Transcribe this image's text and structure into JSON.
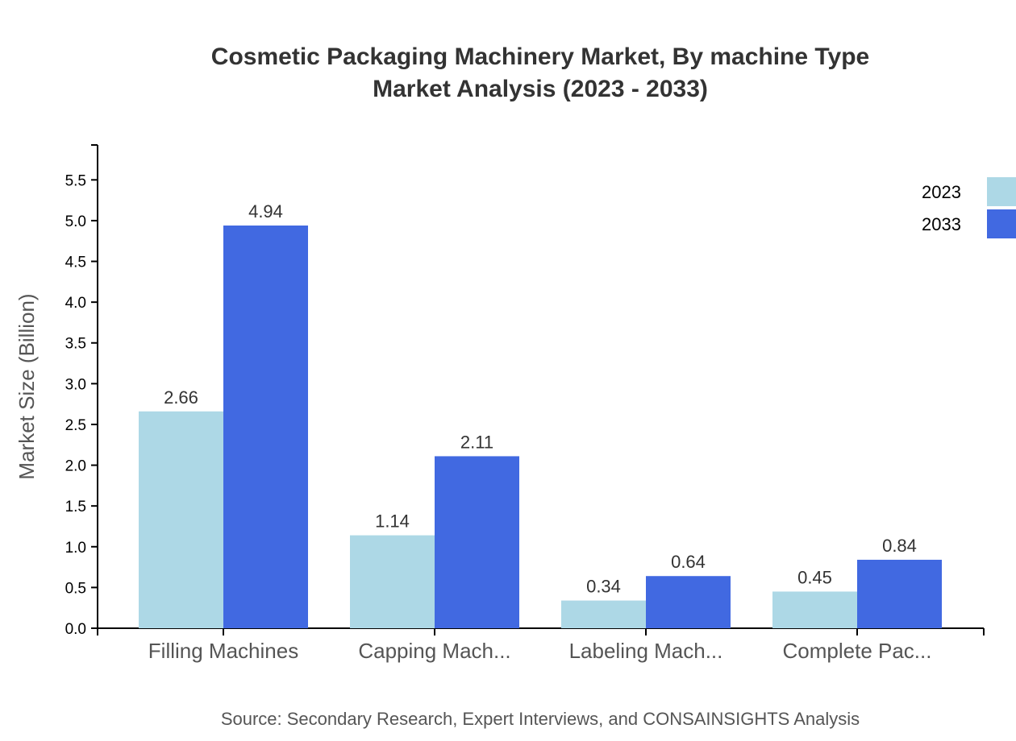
{
  "chart_data": {
    "type": "bar",
    "title": "Cosmetic Packaging Machinery Market, By machine Type",
    "subtitle": "Market Analysis (2023 - 2033)",
    "xlabel": "",
    "ylabel": "Market Size (Billion)",
    "categories": [
      "Filling Machines",
      "Capping Mach...",
      "Labeling Mach...",
      "Complete Pac..."
    ],
    "series": [
      {
        "name": "2023",
        "color": "#ADD8E6",
        "values": [
          2.66,
          1.14,
          0.34,
          0.45
        ],
        "labels": [
          "2.66",
          "1.14",
          "0.34",
          "0.45"
        ]
      },
      {
        "name": "2033",
        "color": "#4169E1",
        "values": [
          4.94,
          2.11,
          0.64,
          0.84
        ],
        "labels": [
          "4.94",
          "2.11",
          "0.64",
          "0.84"
        ]
      }
    ],
    "ylim": [
      0,
      5.928
    ],
    "yticks": [
      "0.0",
      "0.5",
      "1.0",
      "1.5",
      "2.0",
      "2.5",
      "3.0",
      "3.5",
      "4.0",
      "4.5",
      "5.0",
      "5.5"
    ],
    "grid": false,
    "legend": "top-right",
    "source": "Source: Secondary Research, Expert Interviews, and CONSAINSIGHTS Analysis"
  }
}
